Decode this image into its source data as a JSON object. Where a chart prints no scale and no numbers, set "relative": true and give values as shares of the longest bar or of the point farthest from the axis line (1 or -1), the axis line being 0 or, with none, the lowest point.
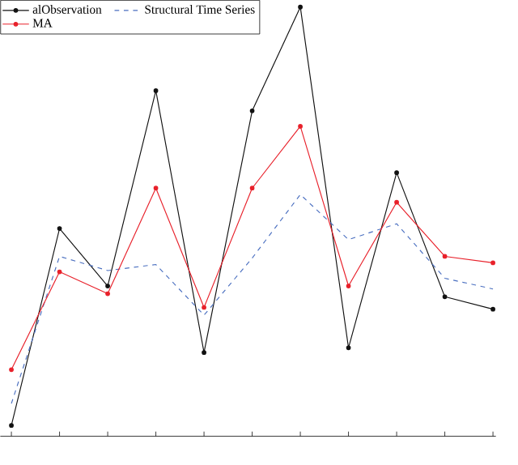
{
  "chart_data": {
    "type": "line",
    "relative": true,
    "categories": [
      null,
      null,
      null,
      null,
      null,
      null,
      null,
      null,
      null,
      null,
      null
    ],
    "legend": "top left",
    "series": [
      {
        "name": "alObservation",
        "color": "#111111",
        "marker": "circle",
        "line_style": "solid",
        "values": [
          0.025,
          0.484,
          0.35,
          0.805,
          0.195,
          0.758,
          1.0,
          0.206,
          0.614,
          0.325,
          0.296
        ]
      },
      {
        "name": "Structural Time Series",
        "color": "#4a6fc0",
        "marker": "none",
        "line_style": "dashed",
        "values": [
          0.076,
          0.419,
          0.386,
          0.4,
          0.282,
          0.415,
          0.563,
          0.458,
          0.495,
          0.368,
          0.343
        ]
      },
      {
        "name": "MA",
        "color": "#e8202a",
        "marker": "circle",
        "line_style": "solid",
        "values": [
          0.155,
          0.383,
          0.332,
          0.578,
          0.3,
          0.578,
          0.722,
          0.35,
          0.545,
          0.419,
          0.404
        ]
      }
    ]
  }
}
